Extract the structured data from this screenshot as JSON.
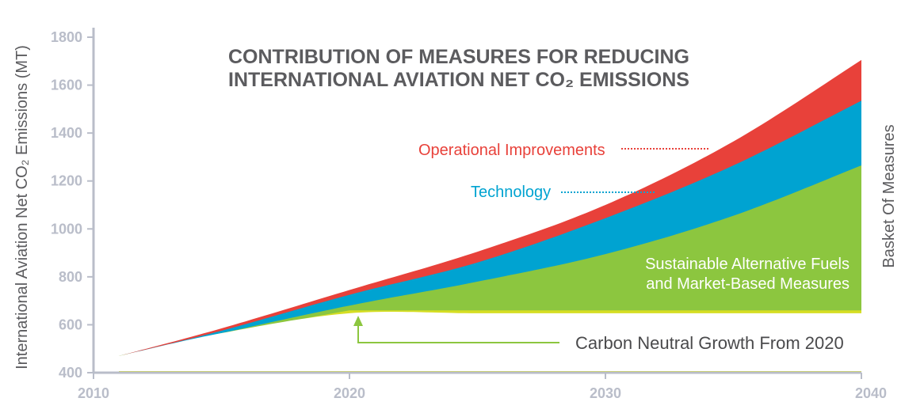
{
  "chart_data": {
    "type": "area",
    "title_lines": [
      "CONTRIBUTION OF MEASURES FOR REDUCING",
      "INTERNATIONAL AVIATION NET CO₂ EMISSIONS"
    ],
    "ylabel": "International Aviation Net CO₂ Emissions (MT)",
    "right_label": "Basket Of Measures",
    "xlim": [
      2010,
      2040
    ],
    "ylim": [
      400,
      1800
    ],
    "x_ticks": [
      "2010",
      "2020",
      "2030",
      "2040"
    ],
    "y_ticks": [
      "400",
      "600",
      "800",
      "1000",
      "1200",
      "1400",
      "1600",
      "1800"
    ],
    "x": [
      2011,
      2015,
      2020,
      2025,
      2030,
      2035,
      2040
    ],
    "series": [
      {
        "name": "Carbon Neutral Growth From 2020",
        "values": [
          470,
          565,
          660,
          660,
          660,
          660,
          660
        ],
        "color": "#d6de23"
      },
      {
        "name": "Sustainable Alternative Fuels and Market-Based Measures",
        "values": [
          470,
          565,
          680,
          780,
          895,
          1055,
          1265
        ],
        "color": "#8cc63f"
      },
      {
        "name": "Technology",
        "values": [
          470,
          575,
          725,
          860,
          1045,
          1265,
          1535
        ],
        "color": "#00a3d1"
      },
      {
        "name": "Operational Improvements",
        "values": [
          470,
          585,
          745,
          905,
          1100,
          1365,
          1705
        ],
        "color": "#e8413a"
      }
    ],
    "annotations": {
      "operational": "Operational Improvements",
      "technology": "Technology",
      "saf_line1": "Sustainable Alternative Fuels",
      "saf_line2": "and Market-Based Measures",
      "cng": "Carbon Neutral Growth From 2020"
    },
    "colors": {
      "axis": "#b9bdc9",
      "title": "#5b5b5e",
      "arrow": "#8cc63f"
    },
    "grid": false
  }
}
